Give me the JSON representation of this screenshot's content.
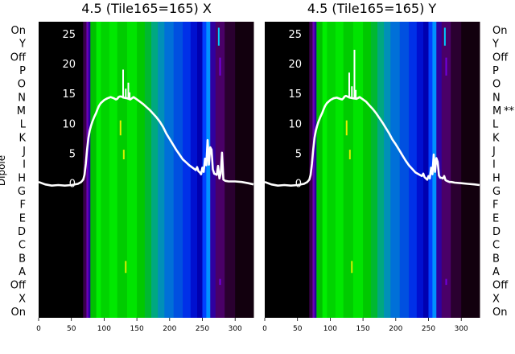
{
  "chart_data": {
    "type": "heatmap",
    "panels": [
      {
        "title": "4.5 (Tile165=165) X",
        "dipole_marker": "",
        "dipole_marker_row": ""
      },
      {
        "title": "4.5 (Tile165=165) Y",
        "dipole_marker": "**",
        "dipole_marker_row": "M"
      }
    ],
    "ylabel": "Dipole",
    "dipole_rows": [
      "On",
      "Y",
      "Off",
      "P",
      "O",
      "N",
      "M",
      "L",
      "K",
      "J",
      "I",
      "H",
      "G",
      "F",
      "E",
      "D",
      "C",
      "B",
      "A",
      "Off",
      "X",
      "On"
    ],
    "x_ticks": [
      0,
      50,
      100,
      150,
      200,
      250,
      300
    ],
    "xlim": [
      0,
      328
    ],
    "y_ticks": [
      0,
      5,
      10,
      15,
      20,
      25
    ],
    "y_tick_labels": [
      "0",
      "5",
      "10",
      "15",
      "20",
      "25"
    ],
    "ylim": [
      -22.5,
      27
    ],
    "heatmap_bands": [
      {
        "x0": 0,
        "x1": 68,
        "color": "#000000"
      },
      {
        "x0": 68,
        "x1": 73,
        "color": "#3a004a"
      },
      {
        "x0": 73,
        "x1": 76,
        "color": "#6a00b8"
      },
      {
        "x0": 76,
        "x1": 79,
        "color": "#2800a0"
      },
      {
        "x0": 79,
        "x1": 88,
        "color": "#00c000"
      },
      {
        "x0": 88,
        "x1": 95,
        "color": "#00ee00"
      },
      {
        "x0": 95,
        "x1": 108,
        "color": "#00d400"
      },
      {
        "x0": 108,
        "x1": 120,
        "color": "#00e800"
      },
      {
        "x0": 120,
        "x1": 135,
        "color": "#00cc00"
      },
      {
        "x0": 135,
        "x1": 150,
        "color": "#00e400"
      },
      {
        "x0": 150,
        "x1": 162,
        "color": "#00c800"
      },
      {
        "x0": 162,
        "x1": 172,
        "color": "#00b830"
      },
      {
        "x0": 172,
        "x1": 182,
        "color": "#00a880"
      },
      {
        "x0": 182,
        "x1": 192,
        "color": "#0090b8"
      },
      {
        "x0": 192,
        "x1": 206,
        "color": "#0070d8"
      },
      {
        "x0": 206,
        "x1": 220,
        "color": "#0050e0"
      },
      {
        "x0": 220,
        "x1": 232,
        "color": "#0030e8"
      },
      {
        "x0": 232,
        "x1": 242,
        "color": "#0010d0"
      },
      {
        "x0": 242,
        "x1": 250,
        "color": "#0000b0"
      },
      {
        "x0": 250,
        "x1": 256,
        "color": "#0040ff"
      },
      {
        "x0": 256,
        "x1": 262,
        "color": "#0090ff"
      },
      {
        "x0": 262,
        "x1": 270,
        "color": "#3000a0"
      },
      {
        "x0": 270,
        "x1": 284,
        "color": "#4a0068"
      },
      {
        "x0": 284,
        "x1": 300,
        "color": "#2a0030"
      },
      {
        "x0": 300,
        "x1": 328,
        "color": "#12000e"
      }
    ],
    "series": [
      {
        "x": [
          0,
          10,
          20,
          30,
          40,
          50,
          60,
          65,
          68,
          70,
          72,
          74,
          76,
          78,
          80,
          82,
          85,
          88,
          90,
          92,
          95,
          98,
          100,
          105,
          110,
          115,
          118,
          120,
          122,
          124,
          126,
          128,
          130,
          135,
          140,
          145,
          150,
          155,
          160,
          165,
          170,
          175,
          180,
          185,
          190,
          195,
          200,
          205,
          210,
          215,
          220,
          225,
          230,
          235,
          240,
          242,
          244,
          246,
          248,
          250,
          252,
          254,
          256,
          258,
          260,
          262,
          264,
          266,
          268,
          270,
          272,
          274,
          276,
          278,
          280,
          282,
          285,
          290,
          300,
          310,
          320,
          328
        ],
        "y": [
          0.2,
          -0.2,
          -0.4,
          -0.3,
          -0.4,
          -0.3,
          -0.1,
          0.2,
          0.6,
          1.4,
          3.2,
          5.6,
          7.6,
          8.8,
          9.6,
          10.3,
          11.1,
          11.8,
          12.4,
          12.9,
          13.4,
          13.7,
          13.9,
          14.2,
          14.4,
          14.2,
          14.0,
          14.1,
          14.4,
          14.5,
          14.5,
          14.4,
          14.3,
          14.2,
          14.0,
          14.4,
          14.0,
          13.6,
          13.2,
          12.7,
          12.2,
          11.6,
          11.0,
          10.3,
          9.4,
          8.3,
          7.4,
          6.5,
          5.6,
          4.8,
          4.0,
          3.5,
          3.0,
          2.6,
          2.2,
          2.7,
          2.0,
          1.8,
          1.5,
          2.6,
          1.9,
          4.1,
          3.0,
          7.2,
          3.1,
          6.0,
          5.6,
          2.3,
          1.6,
          1.5,
          1.4,
          2.9,
          0.8,
          1.6,
          5.1,
          0.6,
          0.4,
          0.3,
          0.3,
          0.2,
          0.0,
          -0.2
        ]
      },
      {
        "x": [
          0,
          10,
          20,
          30,
          40,
          50,
          60,
          65,
          68,
          70,
          72,
          74,
          76,
          78,
          80,
          82,
          85,
          88,
          90,
          92,
          95,
          98,
          100,
          105,
          110,
          115,
          118,
          120,
          122,
          124,
          126,
          128,
          130,
          135,
          140,
          145,
          150,
          155,
          160,
          165,
          170,
          175,
          180,
          185,
          190,
          195,
          200,
          205,
          210,
          215,
          220,
          225,
          230,
          235,
          240,
          242,
          244,
          246,
          248,
          250,
          252,
          254,
          256,
          258,
          260,
          262,
          264,
          266,
          268,
          270,
          272,
          274,
          276,
          278,
          280,
          282,
          285,
          290,
          300,
          310,
          320,
          328
        ],
        "y": [
          0.2,
          -0.2,
          -0.4,
          -0.3,
          -0.4,
          -0.3,
          -0.1,
          0.2,
          0.6,
          1.4,
          3.2,
          5.6,
          7.6,
          8.8,
          9.6,
          10.3,
          11.1,
          11.8,
          12.4,
          12.9,
          13.4,
          13.7,
          13.9,
          14.2,
          14.3,
          14.1,
          14.0,
          14.2,
          14.5,
          14.6,
          14.5,
          14.4,
          14.3,
          14.2,
          14.1,
          14.4,
          14.0,
          13.6,
          13.0,
          12.4,
          11.7,
          10.9,
          10.1,
          9.2,
          8.3,
          7.3,
          6.5,
          5.6,
          4.7,
          3.8,
          3.0,
          2.4,
          1.8,
          1.5,
          1.2,
          1.6,
          1.0,
          0.8,
          0.6,
          1.2,
          0.8,
          2.6,
          1.5,
          4.8,
          1.9,
          4.2,
          3.6,
          1.3,
          0.9,
          0.9,
          0.8,
          1.2,
          0.5,
          0.4,
          0.3,
          0.2,
          0.2,
          0.1,
          0.0,
          -0.1,
          -0.2,
          -0.3
        ]
      }
    ],
    "spikes": [
      [
        [
          129,
          19
        ],
        [
          133,
          15.8
        ],
        [
          137,
          16.8
        ],
        [
          139,
          15.2
        ]
      ],
      [
        [
          129,
          18.5
        ],
        [
          133,
          16.2
        ],
        [
          137,
          22.3
        ],
        [
          139,
          15.6
        ]
      ]
    ],
    "heatmap_accents": [
      {
        "x": 125,
        "y0": 8,
        "y1": 10.5,
        "color": "#e8f000"
      },
      {
        "x": 130,
        "y0": 4,
        "y1": 5.6,
        "color": "#d8f000"
      },
      {
        "x": 133,
        "y0": -15,
        "y1": -13,
        "color": "#d8f000"
      },
      {
        "x": 275,
        "y0": 23,
        "y1": 26,
        "color": "#00ccff"
      },
      {
        "x": 277,
        "y0": 18,
        "y1": 21,
        "color": "#7000e0"
      },
      {
        "x": 277,
        "y0": -17,
        "y1": -16,
        "color": "#7000e0"
      }
    ],
    "grid": false,
    "legend": "none"
  }
}
